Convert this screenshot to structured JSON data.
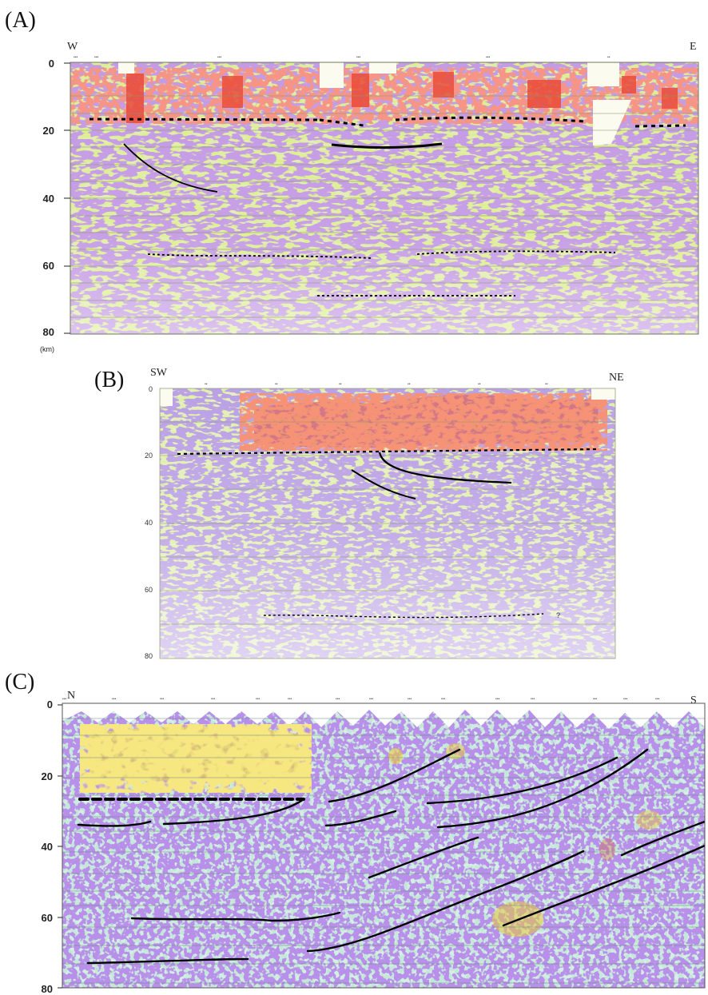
{
  "panels": [
    {
      "id": "A",
      "label": "(A)",
      "left_dir": "W",
      "right_dir": "E",
      "depth_ticks": [
        "0",
        "20",
        "40",
        "60",
        "80"
      ],
      "unit": "(km)",
      "colors": {
        "base": "#e2ecb2",
        "low": "#c6df5a",
        "mid": "#8b54c8",
        "hot": "#e6493a"
      }
    },
    {
      "id": "B",
      "label": "(B)",
      "left_dir": "SW",
      "right_dir": "NE",
      "depth_ticks": [
        "0",
        "20",
        "40",
        "60",
        "80"
      ],
      "question_mark": "?",
      "colors": {
        "base": "#e4eec0",
        "low": "#c8de62",
        "mid": "#7d5ac8",
        "hot": "#ea4a2e"
      }
    },
    {
      "id": "C",
      "label": "(C)",
      "left_dir": "N",
      "right_dir": "S",
      "depth_ticks": [
        "0",
        "20",
        "40",
        "60",
        "80"
      ],
      "colors": {
        "base": "#d6eee6",
        "low": "#a8d6c6",
        "mid": "#7a46d2",
        "hot": "#e8cc3a"
      }
    }
  ]
}
